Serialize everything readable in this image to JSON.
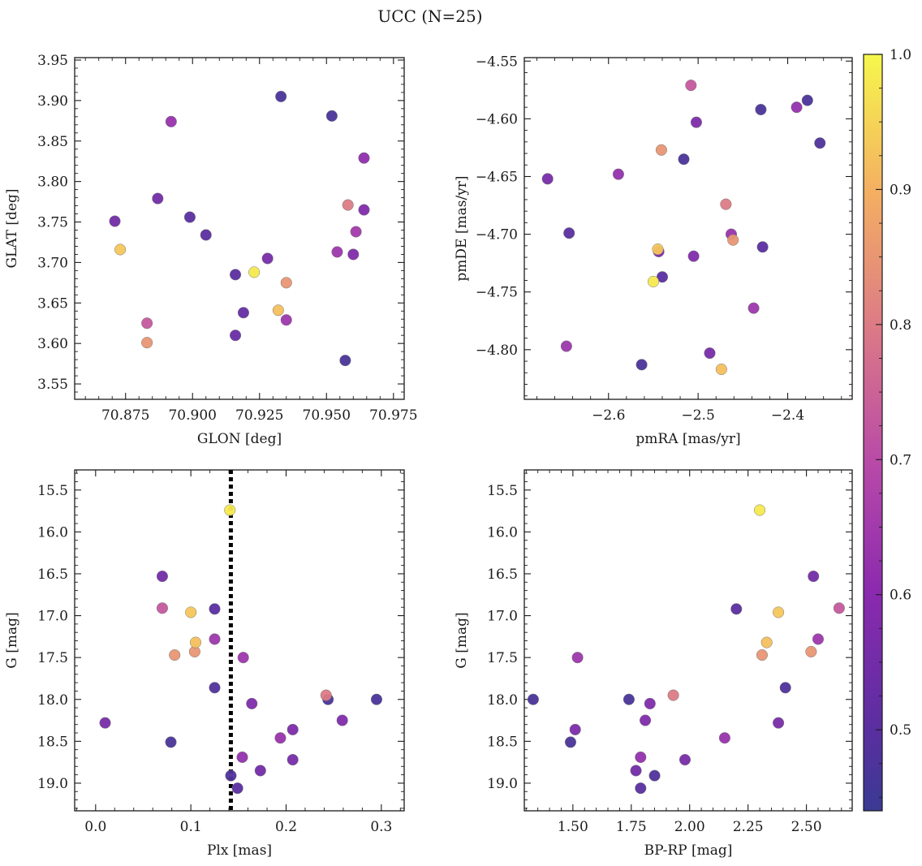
{
  "figure": {
    "title": "UCC (N=25)",
    "colorbar": {
      "colormap": "plasma",
      "range": [
        0.44,
        1.0
      ],
      "ticks": [
        "0.5",
        "0.6",
        "0.7",
        "0.8",
        "0.9",
        "1.0"
      ],
      "tick_values": [
        0.5,
        0.6,
        0.7,
        0.8,
        0.9,
        1.0
      ]
    }
  },
  "chart_data": [
    {
      "id": "glon-glat",
      "type": "scatter",
      "xlabel": "GLON [deg]",
      "ylabel": "GLAT [deg]",
      "xlim": [
        70.856,
        70.979
      ],
      "ylim": [
        3.531,
        3.953
      ],
      "x_ticks": [
        70.875,
        70.9,
        70.925,
        70.95,
        70.975
      ],
      "x_tick_labels": [
        "70.875",
        "70.900",
        "70.925",
        "70.950",
        "70.975"
      ],
      "y_ticks": [
        3.55,
        3.6,
        3.65,
        3.7,
        3.75,
        3.8,
        3.85,
        3.9,
        3.95
      ],
      "y_tick_labels": [
        "3.55",
        "3.60",
        "3.65",
        "3.70",
        "3.75",
        "3.80",
        "3.85",
        "3.90",
        "3.95"
      ],
      "points": [
        {
          "x": 70.933,
          "y": 3.905,
          "c": 0.47
        },
        {
          "x": 70.952,
          "y": 3.881,
          "c": 0.47
        },
        {
          "x": 70.892,
          "y": 3.874,
          "c": 0.63
        },
        {
          "x": 70.964,
          "y": 3.829,
          "c": 0.61
        },
        {
          "x": 70.958,
          "y": 3.771,
          "c": 0.8
        },
        {
          "x": 70.887,
          "y": 3.779,
          "c": 0.55
        },
        {
          "x": 70.871,
          "y": 3.751,
          "c": 0.55
        },
        {
          "x": 70.899,
          "y": 3.756,
          "c": 0.5
        },
        {
          "x": 70.964,
          "y": 3.765,
          "c": 0.58
        },
        {
          "x": 70.961,
          "y": 3.738,
          "c": 0.65
        },
        {
          "x": 70.905,
          "y": 3.734,
          "c": 0.5
        },
        {
          "x": 70.873,
          "y": 3.716,
          "c": 0.93
        },
        {
          "x": 70.954,
          "y": 3.713,
          "c": 0.64
        },
        {
          "x": 70.96,
          "y": 3.71,
          "c": 0.58
        },
        {
          "x": 70.928,
          "y": 3.705,
          "c": 0.56
        },
        {
          "x": 70.916,
          "y": 3.685,
          "c": 0.5
        },
        {
          "x": 70.923,
          "y": 3.688,
          "c": 0.98
        },
        {
          "x": 70.935,
          "y": 3.675,
          "c": 0.85
        },
        {
          "x": 70.932,
          "y": 3.641,
          "c": 0.92
        },
        {
          "x": 70.919,
          "y": 3.638,
          "c": 0.52
        },
        {
          "x": 70.935,
          "y": 3.629,
          "c": 0.64
        },
        {
          "x": 70.883,
          "y": 3.625,
          "c": 0.73
        },
        {
          "x": 70.916,
          "y": 3.61,
          "c": 0.53
        },
        {
          "x": 70.883,
          "y": 3.601,
          "c": 0.85
        },
        {
          "x": 70.957,
          "y": 3.579,
          "c": 0.47
        }
      ]
    },
    {
      "id": "pmra-pmde",
      "type": "scatter",
      "xlabel": "pmRA [mas/yr]",
      "ylabel": "pmDE [mas/yr]",
      "xlim": [
        -2.694,
        -2.328
      ],
      "ylim": [
        -4.843,
        -4.547
      ],
      "x_ticks": [
        -2.6,
        -2.5,
        -2.4
      ],
      "x_tick_labels": [
        "−2.6",
        "−2.5",
        "−2.4"
      ],
      "y_ticks": [
        -4.8,
        -4.75,
        -4.7,
        -4.65,
        -4.6,
        -4.55
      ],
      "y_tick_labels": [
        "−4.80",
        "−4.75",
        "−4.70",
        "−4.65",
        "−4.60",
        "−4.55"
      ],
      "points": [
        {
          "x": -2.508,
          "y": -4.571,
          "c": 0.73
        },
        {
          "x": -2.378,
          "y": -4.584,
          "c": 0.47
        },
        {
          "x": -2.39,
          "y": -4.59,
          "c": 0.62
        },
        {
          "x": -2.43,
          "y": -4.592,
          "c": 0.47
        },
        {
          "x": -2.502,
          "y": -4.603,
          "c": 0.57
        },
        {
          "x": -2.364,
          "y": -4.621,
          "c": 0.48
        },
        {
          "x": -2.541,
          "y": -4.627,
          "c": 0.85
        },
        {
          "x": -2.516,
          "y": -4.635,
          "c": 0.47
        },
        {
          "x": -2.589,
          "y": -4.648,
          "c": 0.62
        },
        {
          "x": -2.668,
          "y": -4.652,
          "c": 0.56
        },
        {
          "x": -2.469,
          "y": -4.674,
          "c": 0.8
        },
        {
          "x": -2.644,
          "y": -4.699,
          "c": 0.5
        },
        {
          "x": -2.463,
          "y": -4.7,
          "c": 0.63
        },
        {
          "x": -2.461,
          "y": -4.705,
          "c": 0.85
        },
        {
          "x": -2.428,
          "y": -4.711,
          "c": 0.5
        },
        {
          "x": -2.545,
          "y": -4.713,
          "c": 0.93
        },
        {
          "x": -2.544,
          "y": -4.715,
          "c": 0.58
        },
        {
          "x": -2.505,
          "y": -4.719,
          "c": 0.58
        },
        {
          "x": -2.54,
          "y": -4.737,
          "c": 0.5
        },
        {
          "x": -2.55,
          "y": -4.741,
          "c": 0.98
        },
        {
          "x": -2.438,
          "y": -4.764,
          "c": 0.64
        },
        {
          "x": -2.647,
          "y": -4.797,
          "c": 0.64
        },
        {
          "x": -2.487,
          "y": -4.803,
          "c": 0.56
        },
        {
          "x": -2.563,
          "y": -4.813,
          "c": 0.47
        },
        {
          "x": -2.474,
          "y": -4.817,
          "c": 0.92
        }
      ]
    },
    {
      "id": "plx-g",
      "type": "scatter",
      "xlabel": "Plx [mas]",
      "ylabel": "G [mag]",
      "xlim": [
        -0.022,
        0.324
      ],
      "ylim": [
        19.33,
        15.26
      ],
      "y_inverted": true,
      "vline": 0.142,
      "x_ticks": [
        0.0,
        0.1,
        0.2,
        0.3
      ],
      "x_tick_labels": [
        "0.0",
        "0.1",
        "0.2",
        "0.3"
      ],
      "y_ticks": [
        15.5,
        16.0,
        16.5,
        17.0,
        17.5,
        18.0,
        18.5,
        19.0
      ],
      "y_tick_labels": [
        "15.5",
        "16.0",
        "16.5",
        "17.0",
        "17.5",
        "18.0",
        "18.5",
        "19.0"
      ],
      "points": [
        {
          "x": 0.141,
          "y": 15.74,
          "c": 0.98
        },
        {
          "x": 0.07,
          "y": 16.53,
          "c": 0.55
        },
        {
          "x": 0.07,
          "y": 16.91,
          "c": 0.73
        },
        {
          "x": 0.1,
          "y": 16.96,
          "c": 0.93
        },
        {
          "x": 0.125,
          "y": 16.92,
          "c": 0.5
        },
        {
          "x": 0.105,
          "y": 17.32,
          "c": 0.92
        },
        {
          "x": 0.125,
          "y": 17.28,
          "c": 0.64
        },
        {
          "x": 0.083,
          "y": 17.47,
          "c": 0.85
        },
        {
          "x": 0.104,
          "y": 17.43,
          "c": 0.85
        },
        {
          "x": 0.155,
          "y": 17.5,
          "c": 0.64
        },
        {
          "x": 0.125,
          "y": 17.86,
          "c": 0.48
        },
        {
          "x": 0.242,
          "y": 17.95,
          "c": 0.8
        },
        {
          "x": 0.244,
          "y": 18.0,
          "c": 0.47
        },
        {
          "x": 0.295,
          "y": 18.0,
          "c": 0.47
        },
        {
          "x": 0.164,
          "y": 18.05,
          "c": 0.58
        },
        {
          "x": 0.259,
          "y": 18.25,
          "c": 0.58
        },
        {
          "x": 0.01,
          "y": 18.28,
          "c": 0.56
        },
        {
          "x": 0.207,
          "y": 18.36,
          "c": 0.57
        },
        {
          "x": 0.194,
          "y": 18.46,
          "c": 0.63
        },
        {
          "x": 0.079,
          "y": 18.51,
          "c": 0.47
        },
        {
          "x": 0.154,
          "y": 18.69,
          "c": 0.62
        },
        {
          "x": 0.207,
          "y": 18.72,
          "c": 0.56
        },
        {
          "x": 0.173,
          "y": 18.85,
          "c": 0.55
        },
        {
          "x": 0.142,
          "y": 18.91,
          "c": 0.48
        },
        {
          "x": 0.149,
          "y": 19.06,
          "c": 0.5
        }
      ]
    },
    {
      "id": "bprp-g",
      "type": "scatter",
      "xlabel": "BP-RP [mag]",
      "ylabel": "G [mag]",
      "xlim": [
        1.292,
        2.696
      ],
      "ylim": [
        19.33,
        15.26
      ],
      "y_inverted": true,
      "x_ticks": [
        1.5,
        1.75,
        2.0,
        2.25,
        2.5
      ],
      "x_tick_labels": [
        "1.50",
        "1.75",
        "2.00",
        "2.25",
        "2.50"
      ],
      "y_ticks": [
        15.5,
        16.0,
        16.5,
        17.0,
        17.5,
        18.0,
        18.5,
        19.0
      ],
      "y_tick_labels": [
        "15.5",
        "16.0",
        "16.5",
        "17.0",
        "17.5",
        "18.0",
        "18.5",
        "19.0"
      ],
      "points": [
        {
          "x": 2.3,
          "y": 15.74,
          "c": 0.98
        },
        {
          "x": 2.53,
          "y": 16.53,
          "c": 0.55
        },
        {
          "x": 2.64,
          "y": 16.91,
          "c": 0.73
        },
        {
          "x": 2.2,
          "y": 16.92,
          "c": 0.5
        },
        {
          "x": 2.38,
          "y": 16.96,
          "c": 0.93
        },
        {
          "x": 2.33,
          "y": 17.32,
          "c": 0.92
        },
        {
          "x": 2.55,
          "y": 17.28,
          "c": 0.64
        },
        {
          "x": 2.31,
          "y": 17.47,
          "c": 0.85
        },
        {
          "x": 2.52,
          "y": 17.43,
          "c": 0.85
        },
        {
          "x": 1.52,
          "y": 17.5,
          "c": 0.64
        },
        {
          "x": 2.41,
          "y": 17.86,
          "c": 0.48
        },
        {
          "x": 1.93,
          "y": 17.95,
          "c": 0.8
        },
        {
          "x": 1.33,
          "y": 18.0,
          "c": 0.47
        },
        {
          "x": 1.74,
          "y": 18.0,
          "c": 0.47
        },
        {
          "x": 1.83,
          "y": 18.05,
          "c": 0.58
        },
        {
          "x": 1.81,
          "y": 18.25,
          "c": 0.58
        },
        {
          "x": 2.38,
          "y": 18.28,
          "c": 0.56
        },
        {
          "x": 1.51,
          "y": 18.36,
          "c": 0.57
        },
        {
          "x": 2.15,
          "y": 18.46,
          "c": 0.63
        },
        {
          "x": 1.49,
          "y": 18.51,
          "c": 0.47
        },
        {
          "x": 1.79,
          "y": 18.69,
          "c": 0.62
        },
        {
          "x": 1.98,
          "y": 18.72,
          "c": 0.56
        },
        {
          "x": 1.77,
          "y": 18.85,
          "c": 0.55
        },
        {
          "x": 1.85,
          "y": 18.91,
          "c": 0.48
        },
        {
          "x": 1.79,
          "y": 19.06,
          "c": 0.5
        }
      ]
    }
  ]
}
